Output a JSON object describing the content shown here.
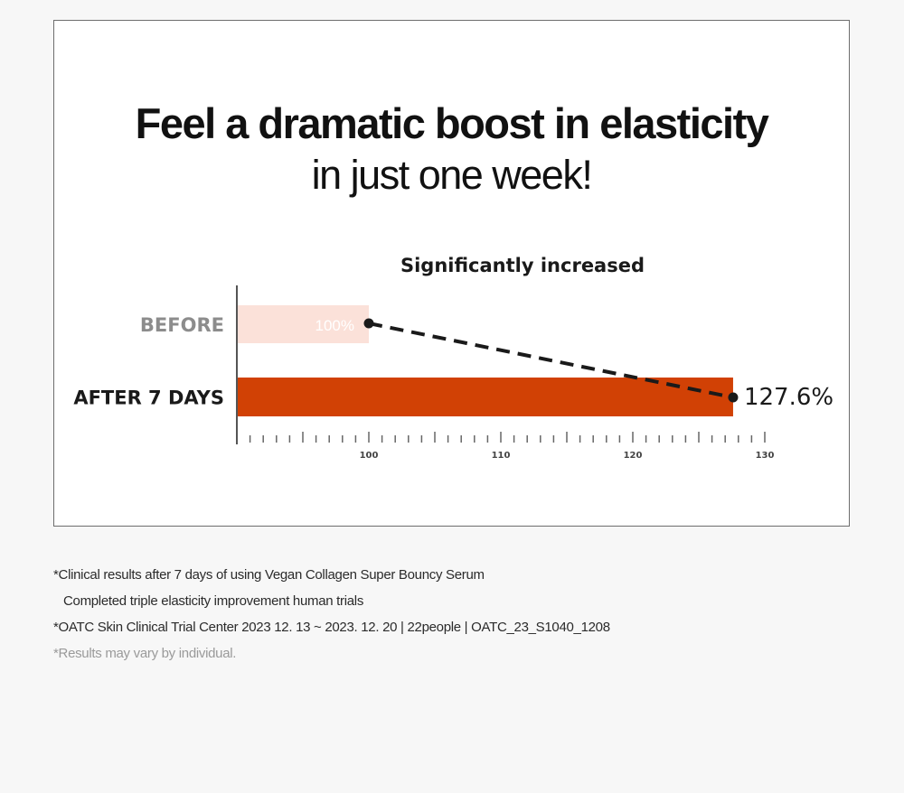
{
  "headline": {
    "line1": "Feel a dramatic boost in elasticity",
    "line2": "in just one week!"
  },
  "chart_data": {
    "type": "bar",
    "orientation": "horizontal",
    "title": "Significantly increased",
    "categories": [
      "BEFORE",
      "AFTER 7 DAYS"
    ],
    "values": [
      100,
      127.6
    ],
    "value_labels": [
      "100%",
      "127.6%"
    ],
    "xlim": [
      90,
      130
    ],
    "x_tick_labels": [
      "100",
      "110",
      "120",
      "130"
    ],
    "x_tick_values": [
      100,
      110,
      120,
      130
    ],
    "minor_tick_step": 1,
    "colors": {
      "before_bar": "#fbe1d9",
      "after_bar": "#d14105",
      "before_label": "#8c8c8c",
      "after_label": "#1a1a1a",
      "trend_line": "#1a1a1a"
    },
    "trend_line": "dashed"
  },
  "notes": [
    "*Clinical results after 7 days of using Vegan Collagen Super Bouncy Serum",
    "Completed triple elasticity improvement human trials",
    "*OATC Skin Clinical Trial Center 2023 12. 13 ~ 2023. 12. 20 | 22people |  OATC_23_S1040_1208",
    "*Results may vary by individual."
  ]
}
